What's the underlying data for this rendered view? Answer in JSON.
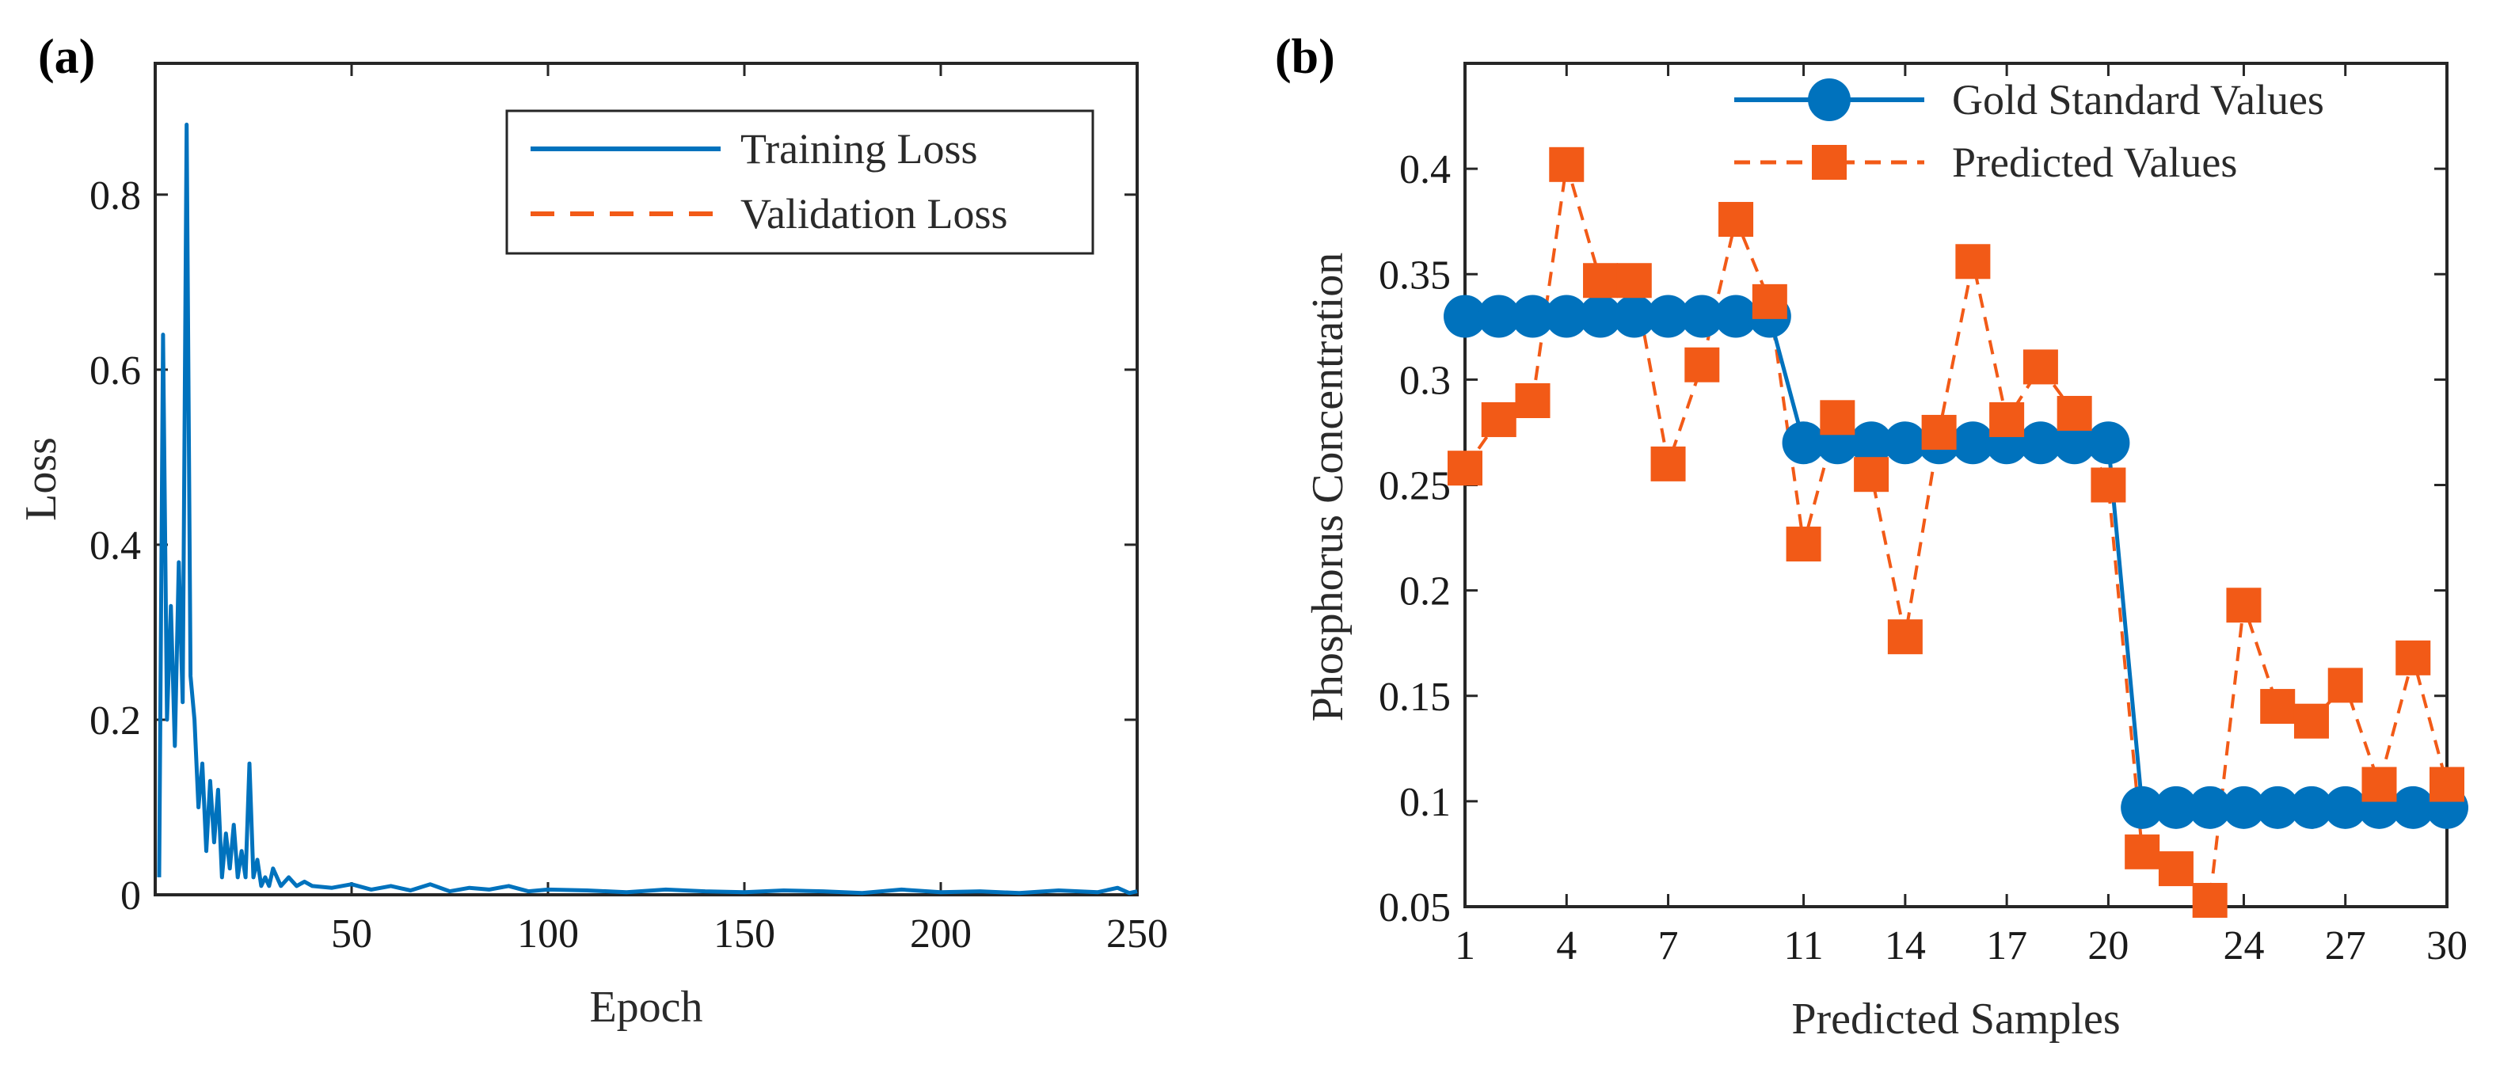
{
  "colors": {
    "blue": "#0072BD",
    "orange": "#F25A17",
    "axis": "#262626",
    "background": "#ffffff"
  },
  "chart_data": [
    {
      "panel_label": "(a)",
      "type": "line",
      "xlabel": "Epoch",
      "ylabel": "Loss",
      "xlim": [
        0,
        250
      ],
      "ylim": [
        0,
        0.95
      ],
      "xticks": [
        50,
        100,
        150,
        200,
        250
      ],
      "xtick_labels": [
        "50",
        "100",
        "150",
        "200",
        "250"
      ],
      "yticks": [
        0,
        0.2,
        0.4,
        0.6,
        0.8
      ],
      "ytick_labels": [
        "0",
        "0.2",
        "0.4",
        "0.6",
        "0.8"
      ],
      "legend_position": "top-right",
      "series": [
        {
          "name": "Training Loss",
          "style": "solid",
          "color": "#0072BD",
          "x": [
            1,
            2,
            3,
            4,
            5,
            6,
            7,
            8,
            9,
            10,
            11,
            12,
            13,
            14,
            15,
            16,
            17,
            18,
            19,
            20,
            21,
            22,
            23,
            24,
            25,
            26,
            27,
            28,
            29,
            30,
            32,
            34,
            36,
            38,
            40,
            45,
            50,
            55,
            60,
            65,
            70,
            75,
            80,
            85,
            90,
            95,
            100,
            110,
            120,
            130,
            140,
            150,
            160,
            170,
            180,
            190,
            200,
            210,
            220,
            230,
            240,
            245,
            248,
            250
          ],
          "values": [
            0.02,
            0.64,
            0.2,
            0.33,
            0.17,
            0.38,
            0.22,
            0.88,
            0.25,
            0.2,
            0.1,
            0.15,
            0.05,
            0.13,
            0.06,
            0.12,
            0.02,
            0.07,
            0.03,
            0.08,
            0.02,
            0.05,
            0.02,
            0.15,
            0.02,
            0.04,
            0.01,
            0.02,
            0.01,
            0.03,
            0.01,
            0.02,
            0.01,
            0.015,
            0.01,
            0.008,
            0.012,
            0.006,
            0.01,
            0.005,
            0.012,
            0.004,
            0.008,
            0.006,
            0.01,
            0.004,
            0.006,
            0.005,
            0.003,
            0.006,
            0.004,
            0.003,
            0.005,
            0.004,
            0.002,
            0.006,
            0.003,
            0.004,
            0.002,
            0.005,
            0.003,
            0.008,
            0.002,
            0.004
          ]
        },
        {
          "name": "Validation Loss",
          "style": "dashed",
          "color": "#F25A17",
          "x": [],
          "values": []
        }
      ]
    },
    {
      "panel_label": "(b)",
      "type": "line",
      "xlabel": "Predicted Samples",
      "ylabel": "Phosphorus Concentration",
      "xlim": [
        1,
        30
      ],
      "ylim": [
        0.05,
        0.45
      ],
      "xticks": [
        1,
        4,
        7,
        11,
        14,
        17,
        20,
        24,
        27,
        30
      ],
      "xtick_labels": [
        "1",
        "4",
        "7",
        "11",
        "14",
        "17",
        "20",
        "24",
        "27",
        "30"
      ],
      "yticks": [
        0.05,
        0.1,
        0.15,
        0.2,
        0.25,
        0.3,
        0.35,
        0.4
      ],
      "ytick_labels": [
        "0.05",
        "0.1",
        "0.15",
        "0.2",
        "0.25",
        "0.3",
        "0.35",
        "0.4"
      ],
      "legend_position": "top-right",
      "categories": [
        1,
        2,
        3,
        4,
        5,
        6,
        7,
        8,
        9,
        10,
        11,
        12,
        13,
        14,
        15,
        16,
        17,
        18,
        19,
        20,
        21,
        22,
        23,
        24,
        25,
        26,
        27,
        28,
        29,
        30
      ],
      "series": [
        {
          "name": "Gold Standard Values",
          "style": "solid-circle",
          "color": "#0072BD",
          "values": [
            0.33,
            0.33,
            0.33,
            0.33,
            0.33,
            0.33,
            0.33,
            0.33,
            0.33,
            0.33,
            0.27,
            0.27,
            0.27,
            0.27,
            0.27,
            0.27,
            0.27,
            0.27,
            0.27,
            0.27,
            0.097,
            0.097,
            0.097,
            0.097,
            0.097,
            0.097,
            0.097,
            0.097,
            0.097,
            0.097
          ]
        },
        {
          "name": "Predicted Values",
          "style": "dashed-square",
          "color": "#F25A17",
          "values": [
            0.258,
            0.281,
            0.29,
            0.402,
            0.347,
            0.347,
            0.26,
            0.307,
            0.376,
            0.337,
            0.222,
            0.282,
            0.255,
            0.178,
            0.275,
            0.356,
            0.281,
            0.306,
            0.284,
            0.25,
            0.076,
            0.068,
            0.053,
            0.193,
            0.145,
            0.138,
            0.155,
            0.108,
            0.168,
            0.108
          ]
        }
      ]
    }
  ]
}
